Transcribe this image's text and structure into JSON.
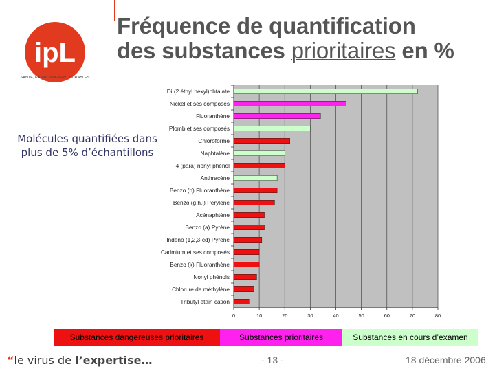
{
  "slide": {
    "title_line1": "Fréquence de quantification",
    "title_line2_a": "des substances ",
    "title_line2_ul": "prioritaires",
    "title_line2_b": " en %",
    "side_note": "Molécules quantifiées dans plus de 5% d’échantillons",
    "logo_text": "ipL",
    "logo_subtitle": "SANTÉ, ENVIRONNEMENT DURABLES",
    "footer_quote": "“",
    "footer_tagline_a": "le virus de ",
    "footer_tagline_b": "l’expertise…",
    "page_number": "- 13 -",
    "date": "18 décembre 2006"
  },
  "colors": {
    "dangerous": "#ee1111",
    "priority": "#ff22ee",
    "review": "#ccffcc",
    "plot_bg": "#c0c0c0",
    "accent": "#e23a1e"
  },
  "chart_data": {
    "type": "bar",
    "orientation": "horizontal",
    "categories": [
      "Di (2 éthyl hexyl)phtalate",
      "Nickel et ses composés",
      "Fluoranthène",
      "Plomb et ses composés",
      "Chloroforme",
      "Naphtalène",
      "4 (para) nonyl phénol",
      "Anthracène",
      "Benzo (b) Fluoranthène",
      "Benzo (g,h,i) Pérylène",
      "Acénaphtène",
      "Benzo (a) Pyrène",
      "Indéno (1,2,3-cd) Pyrène",
      "Cadmium et ses composés",
      "Benzo (k) Fluoranthène",
      "Nonyl phénols",
      "Chlorure de méthylène",
      "Tributyl étain cation"
    ],
    "values": [
      72,
      44,
      34,
      30,
      22,
      20,
      20,
      17,
      17,
      16,
      12,
      12,
      11,
      10,
      10,
      9,
      8,
      6
    ],
    "groups": [
      "review",
      "priority",
      "priority",
      "review",
      "dangerous",
      "review",
      "dangerous",
      "review",
      "dangerous",
      "dangerous",
      "dangerous",
      "dangerous",
      "dangerous",
      "dangerous",
      "dangerous",
      "dangerous",
      "dangerous",
      "dangerous"
    ],
    "xlim": [
      0,
      80
    ],
    "xticks": [
      0,
      10,
      20,
      30,
      40,
      50,
      60,
      70,
      80
    ],
    "grid": true,
    "legend": [
      {
        "key": "dangerous",
        "label": "Substances dangereuses prioritaires"
      },
      {
        "key": "priority",
        "label": "Substances prioritaires"
      },
      {
        "key": "review",
        "label": "Substances en cours d’examen"
      }
    ],
    "legend_placement": "bottom"
  }
}
